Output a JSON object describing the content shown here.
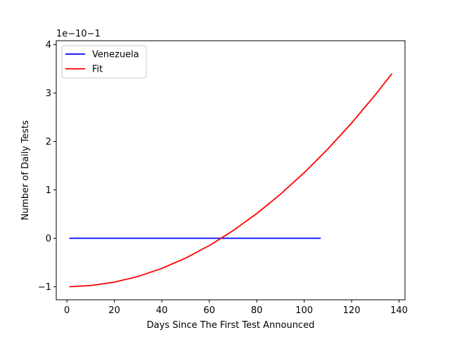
{
  "chart_data": {
    "type": "line",
    "title": "",
    "xlabel": "Days Since The First Test Announced",
    "ylabel": "Number of Daily Tests",
    "scale_label": "1e−10−1",
    "xlim": [
      -4.5,
      142.5
    ],
    "ylim": [
      -1.27,
      4.08
    ],
    "xticks": [
      0,
      20,
      40,
      60,
      80,
      100,
      120,
      140
    ],
    "yticks": [
      -1,
      0,
      1,
      2,
      3,
      4
    ],
    "ytick_labels": [
      "−1",
      "0",
      "1",
      "2",
      "3",
      "4"
    ],
    "legend_position": "upper-left",
    "grid": false,
    "series": [
      {
        "name": "Venezuela",
        "color": "#0000ff",
        "x": [
          1,
          107
        ],
        "y": [
          0,
          0
        ]
      },
      {
        "name": "Fit",
        "color": "#ff0000",
        "x": [
          1,
          10,
          20,
          30,
          40,
          50,
          60,
          62,
          70,
          80,
          90,
          100,
          110,
          120,
          130,
          137
        ],
        "y": [
          -1.0,
          -0.976,
          -0.905,
          -0.787,
          -0.622,
          -0.41,
          -0.15,
          -0.09,
          0.157,
          0.51,
          0.91,
          1.355,
          1.846,
          2.38,
          2.964,
          3.4
        ]
      }
    ]
  }
}
